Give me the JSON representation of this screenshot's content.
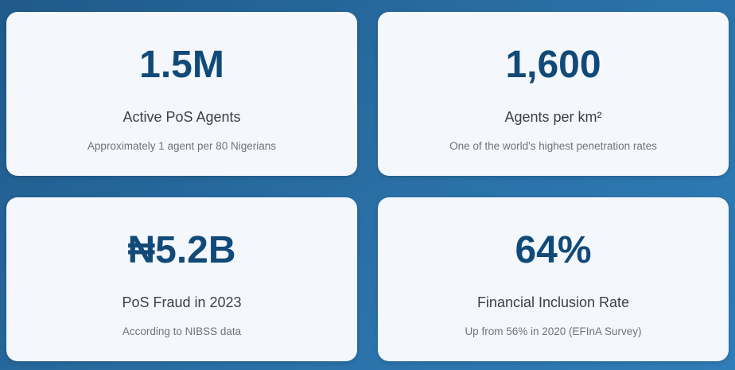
{
  "cards": [
    {
      "value": "1.5M",
      "label": "Active PoS Agents",
      "note": "Approximately 1 agent per 80 Nigerians"
    },
    {
      "value": "1,600",
      "label": "Agents per km²",
      "note": "One of the world's highest penetration rates"
    },
    {
      "value": "₦5.2B",
      "label": "PoS Fraud in 2023",
      "note": "According to NIBSS data"
    },
    {
      "value": "64%",
      "label": "Financial Inclusion Rate",
      "note": "Up from 56% in 2020 (EFInA Survey)"
    }
  ]
}
